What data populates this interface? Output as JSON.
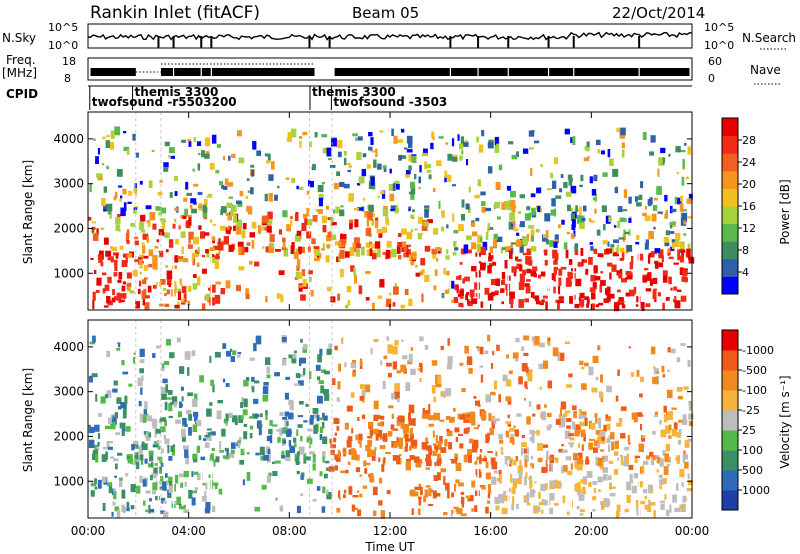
{
  "header": {
    "station": "Rankin Inlet (fitACF)",
    "beam": "Beam 05",
    "date": "22/Oct/2014"
  },
  "nsky_panel": {
    "left_label": "N.Sky",
    "right_label": "N.Search",
    "left_ticks": [
      "10^5",
      "10^0"
    ],
    "right_ticks": [
      "10^5",
      "10^0"
    ]
  },
  "freq_panel": {
    "left_label_1": "Freq.",
    "left_label_2": "[MHz]",
    "right_label": "Nave",
    "left_ticks": [
      "18",
      "8"
    ],
    "right_ticks": [
      "60",
      "0"
    ]
  },
  "cpid": {
    "label": "CPID",
    "markers": [
      {
        "text": "themis 3300",
        "hour": 1.85,
        "row": 0
      },
      {
        "text": "twofsound -r5503200",
        "hour": 0.15,
        "row": 1
      },
      {
        "text": "themis 3300",
        "hour": 8.9,
        "row": 0
      },
      {
        "text": "twofsound -3503",
        "hour": 9.75,
        "row": 1
      }
    ]
  },
  "chart_data": [
    {
      "type": "heatmap",
      "name": "power",
      "ylabel": "Slant Range [km]",
      "ylim": [
        180,
        4600
      ],
      "yticks": [
        1000,
        2000,
        3000,
        4000
      ],
      "colorbar": {
        "label": "Power [dB]",
        "ticks": [
          "4",
          "8",
          "12",
          "16",
          "20",
          "24",
          "28"
        ],
        "colors": [
          "#0000ff",
          "#2e5fa8",
          "#3f8c5e",
          "#59b94c",
          "#a6d33a",
          "#f0c020",
          "#f7941e",
          "#f06020",
          "#ef2b18",
          "#e60000"
        ]
      }
    },
    {
      "type": "heatmap",
      "name": "velocity",
      "xlabel": "Time UT",
      "ylabel": "Slant Range [km]",
      "ylim": [
        180,
        4600
      ],
      "yticks": [
        1000,
        2000,
        3000,
        4000
      ],
      "xticks": [
        "00:00",
        "04:00",
        "08:00",
        "12:00",
        "16:00",
        "20:00",
        "00:00"
      ],
      "xlim_hours": [
        0,
        24
      ],
      "colorbar": {
        "label": "Velocity [m s⁻¹]",
        "ticks": [
          "1000",
          "500",
          "100",
          "25",
          "-25",
          "-100",
          "-500",
          "-1000"
        ],
        "colors": [
          "#1f3fa8",
          "#2e6bb8",
          "#3b8f64",
          "#55b949",
          "#bdbdbd",
          "#f7b43a",
          "#f08a1e",
          "#ee5a18",
          "#e60000"
        ]
      }
    }
  ]
}
